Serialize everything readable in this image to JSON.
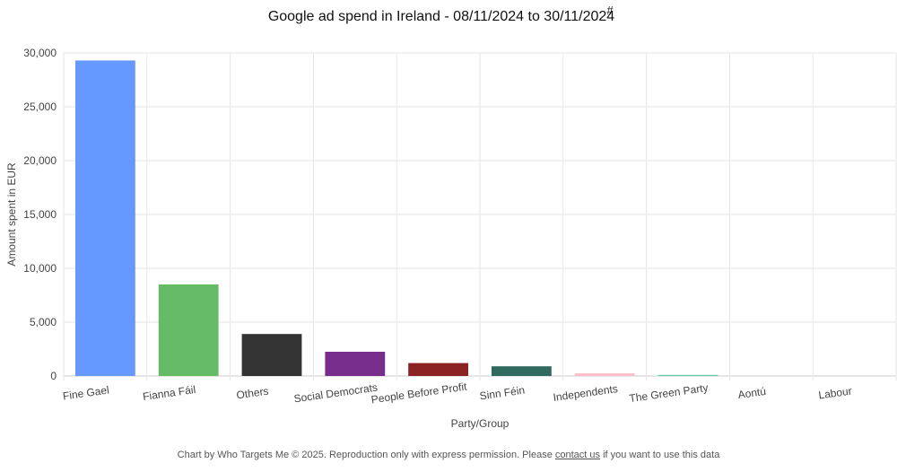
{
  "chart_data": {
    "type": "bar",
    "title": "Google ad spend in Ireland - 08/11/2024 to 30/11/2024",
    "title_mark": "#",
    "xlabel": "Party/Group",
    "ylabel": "Amount spent in EUR",
    "ylim": [
      0,
      30000
    ],
    "yticks": [
      0,
      5000,
      10000,
      15000,
      20000,
      25000,
      30000
    ],
    "ytick_labels": [
      "0",
      "5,000",
      "10,000",
      "15,000",
      "20,000",
      "25,000",
      "30,000"
    ],
    "grid": true,
    "categories": [
      "Fine Gael",
      "Fianna Fáil",
      "Others",
      "Social Democrats",
      "People Before Profit",
      "Sinn Féin",
      "Independents",
      "The Green Party",
      "Aontú",
      "Labour"
    ],
    "values": [
      29300,
      8500,
      3900,
      2250,
      1200,
      900,
      250,
      100,
      0,
      0
    ],
    "colors": [
      "#6699ff",
      "#66bb66",
      "#333333",
      "#772d8b",
      "#8b2323",
      "#2e6b5e",
      "#ffc0cb",
      "#66cdaa",
      "#999999",
      "#cc3333"
    ]
  },
  "footer": {
    "prefix": "Chart by Who Targets Me © 2025. Reproduction only with express permission. Please ",
    "link": "contact us",
    "suffix": " if you want to use this data"
  }
}
